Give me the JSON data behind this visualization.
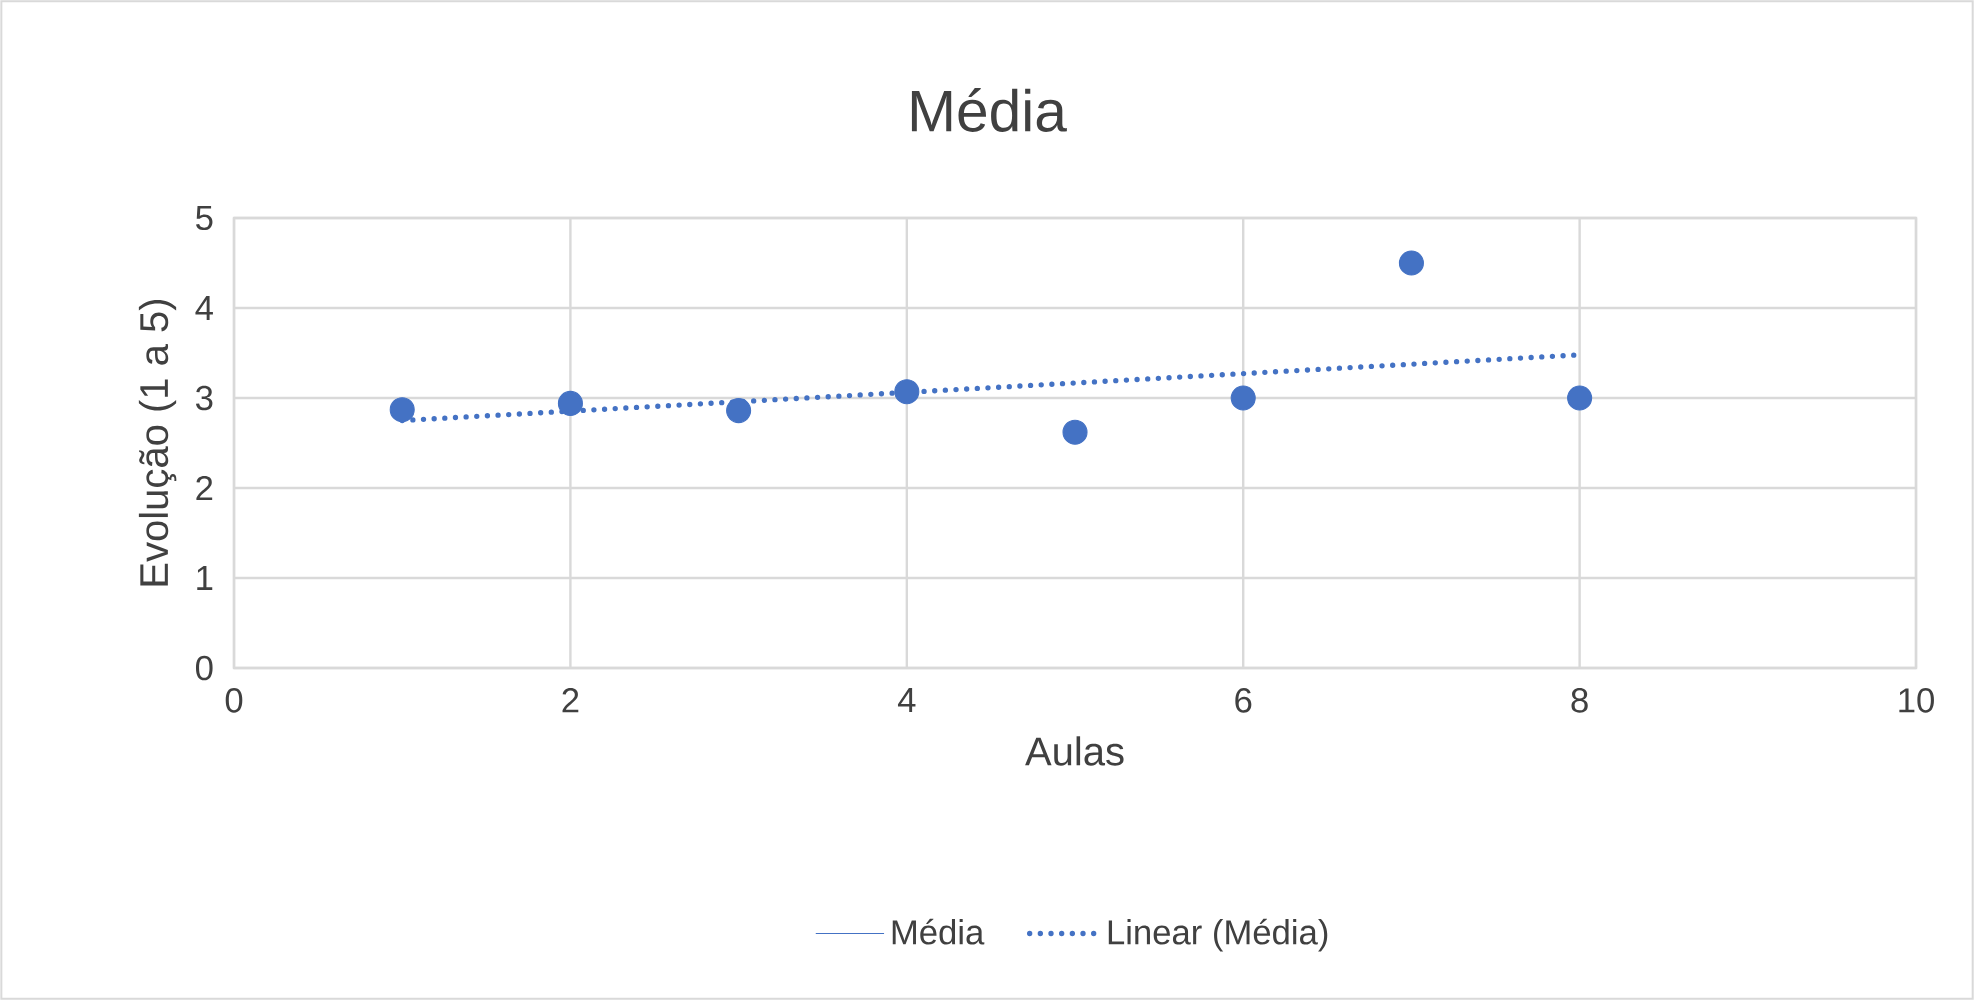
{
  "chart_data": {
    "type": "scatter",
    "title": "Média",
    "xlabel": "Aulas",
    "ylabel": "Evolução (1 a 5)",
    "xlim": [
      0,
      10
    ],
    "ylim": [
      0,
      5
    ],
    "xticks": [
      0,
      2,
      4,
      6,
      8,
      10
    ],
    "yticks": [
      0,
      1,
      2,
      3,
      4,
      5
    ],
    "grid": true,
    "legend": "bottom",
    "marker": "circle",
    "x": [
      1,
      2,
      3,
      4,
      5,
      6,
      7,
      8
    ],
    "series": [
      {
        "name": "Média",
        "color": "#4472c4",
        "values": [
          2.87,
          2.94,
          2.86,
          3.07,
          2.62,
          3.0,
          4.5,
          3.0
        ]
      },
      {
        "name": "Linear (Média)",
        "type": "line",
        "line_style": "dotted",
        "marker": "none",
        "color": "#4472c4",
        "x": [
          1,
          8
        ],
        "values": [
          2.75,
          3.48
        ]
      }
    ]
  }
}
